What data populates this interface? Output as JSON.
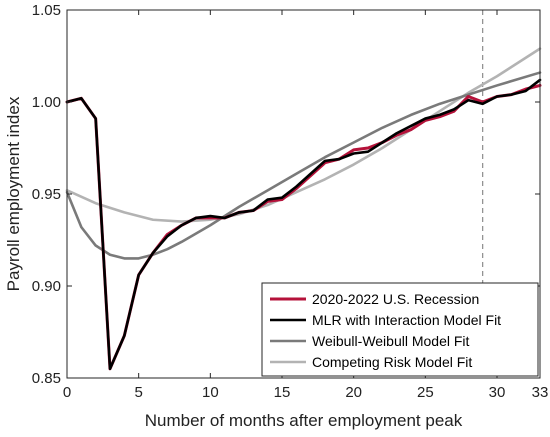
{
  "chart_data": {
    "type": "line",
    "title": "",
    "xlabel": "Number of months after employment peak",
    "ylabel": "Payroll employment index",
    "xlim": [
      0,
      33
    ],
    "ylim": [
      0.85,
      1.05
    ],
    "xticks": [
      0,
      5,
      10,
      15,
      20,
      25,
      30,
      33
    ],
    "yticks": [
      0.85,
      0.9,
      0.95,
      1.0,
      1.05
    ],
    "xtick_labels": [
      "0",
      "5",
      "10",
      "15",
      "20",
      "25",
      "30",
      "33"
    ],
    "ytick_labels": [
      "0.85",
      "0.90",
      "0.95",
      "1.00",
      "1.05"
    ],
    "grid": false,
    "legend_position": "bottom-right",
    "vertical_reference_line": {
      "x": 29,
      "style": "dashed",
      "color": "#8c8c8c"
    },
    "series": [
      {
        "name": "2020-2022 U.S. Recession",
        "color": "#b5123a",
        "x": [
          0,
          1,
          2,
          3,
          4,
          5,
          6,
          7,
          8,
          9,
          10,
          11,
          12,
          13,
          14,
          15,
          16,
          17,
          18,
          19,
          20,
          21,
          22,
          23,
          24,
          25,
          26,
          27,
          28,
          29,
          30,
          31,
          32,
          33
        ],
        "values": [
          1.0,
          1.002,
          0.991,
          0.855,
          0.873,
          0.906,
          0.918,
          0.928,
          0.933,
          0.937,
          0.937,
          0.937,
          0.94,
          0.941,
          0.946,
          0.947,
          0.953,
          0.96,
          0.967,
          0.969,
          0.974,
          0.975,
          0.978,
          0.982,
          0.985,
          0.99,
          0.992,
          0.995,
          1.003,
          1.0,
          1.003,
          1.004,
          1.007,
          1.009
        ]
      },
      {
        "name": "MLR with Interaction Model Fit",
        "color": "#000000",
        "x": [
          0,
          1,
          2,
          3,
          4,
          5,
          6,
          7,
          8,
          9,
          10,
          11,
          12,
          13,
          14,
          15,
          16,
          17,
          18,
          19,
          20,
          21,
          22,
          23,
          24,
          25,
          26,
          27,
          28,
          29,
          30,
          31,
          32,
          33
        ],
        "values": [
          1.0,
          1.002,
          0.991,
          0.855,
          0.873,
          0.906,
          0.918,
          0.927,
          0.933,
          0.937,
          0.938,
          0.937,
          0.94,
          0.941,
          0.947,
          0.948,
          0.954,
          0.961,
          0.968,
          0.969,
          0.972,
          0.973,
          0.978,
          0.983,
          0.987,
          0.991,
          0.993,
          0.996,
          1.001,
          0.999,
          1.003,
          1.004,
          1.006,
          1.012
        ]
      },
      {
        "name": "Weibull-Weibull Model Fit",
        "color": "#7a7a7a",
        "x": [
          0,
          1,
          2,
          3,
          4,
          5,
          6,
          7,
          8,
          10,
          12,
          14,
          16,
          18,
          20,
          22,
          24,
          26,
          28,
          30,
          33
        ],
        "values": [
          0.951,
          0.932,
          0.922,
          0.917,
          0.915,
          0.915,
          0.917,
          0.92,
          0.924,
          0.933,
          0.943,
          0.952,
          0.961,
          0.97,
          0.978,
          0.986,
          0.993,
          0.999,
          1.004,
          1.009,
          1.016
        ]
      },
      {
        "name": "Competing Risk Model Fit",
        "color": "#b3b3b3",
        "x": [
          0,
          2,
          4,
          6,
          8,
          10,
          12,
          14,
          16,
          18,
          20,
          22,
          24,
          26,
          28,
          30,
          33
        ],
        "values": [
          0.952,
          0.945,
          0.94,
          0.936,
          0.935,
          0.936,
          0.939,
          0.944,
          0.951,
          0.958,
          0.966,
          0.975,
          0.985,
          0.995,
          1.005,
          1.014,
          1.029
        ]
      }
    ]
  }
}
